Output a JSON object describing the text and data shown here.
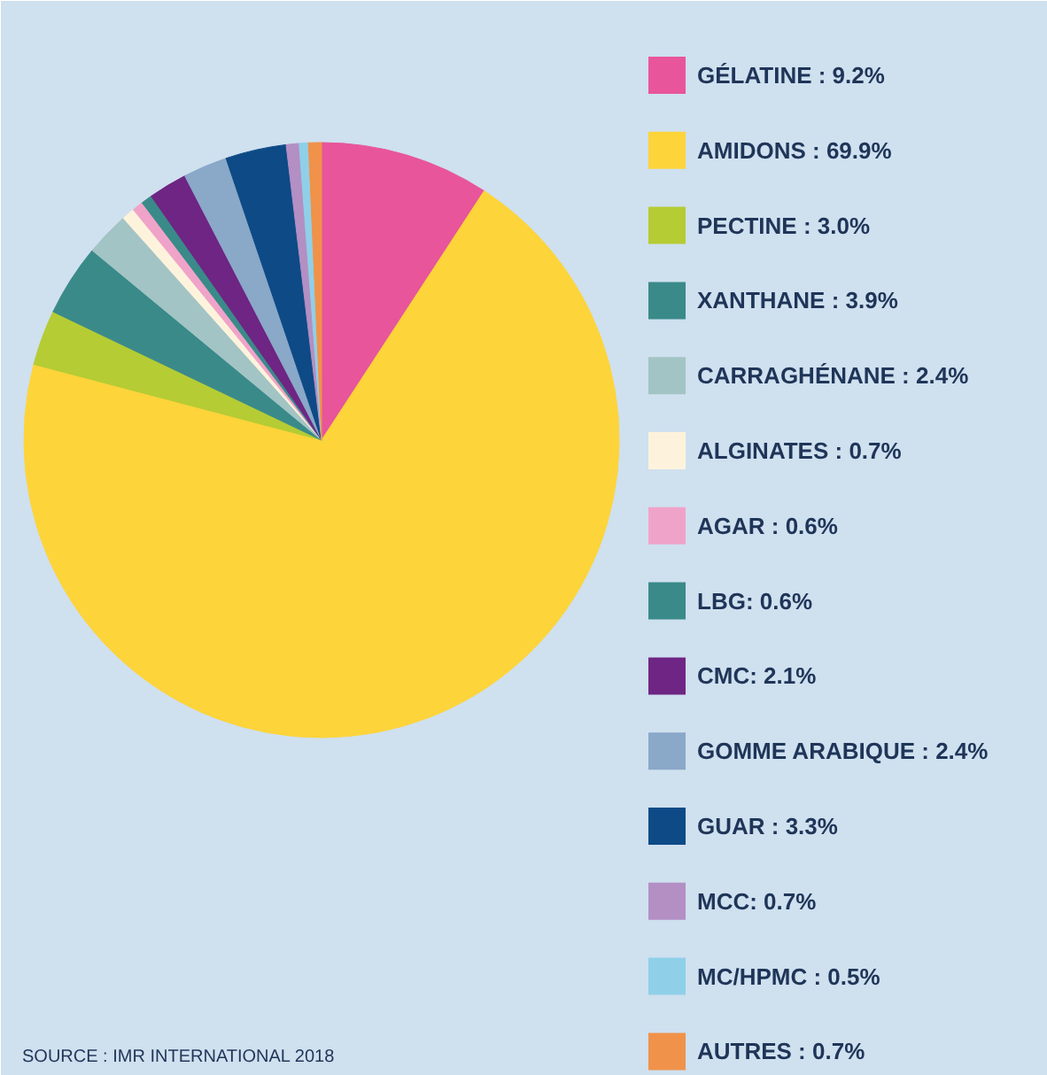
{
  "chart_data": {
    "type": "pie",
    "categories": [
      "GÉLATINE : 9.2%",
      "AMIDONS : 69.9%",
      "PECTINE : 3.0%",
      "XANTHANE : 3.9%",
      "CARRAGHÉNANE : 2.4%",
      "ALGINATES : 0.7%",
      "AGAR : 0.6%",
      "LBG: 0.6%",
      "CMC: 2.1%",
      "GOMME ARABIQUE : 2.4%",
      "GUAR : 3.3%",
      "MCC: 0.7%",
      "MC/HPMC : 0.5%",
      "AUTRES : 0.7%"
    ],
    "values": [
      9.2,
      69.9,
      3.0,
      3.9,
      2.4,
      0.7,
      0.6,
      0.6,
      2.1,
      2.4,
      3.3,
      0.7,
      0.5,
      0.7
    ],
    "colors": [
      "#e8559a",
      "#fdd43a",
      "#b5cc34",
      "#3a8a8a",
      "#a3c4c4",
      "#fdf3dc",
      "#f0a3c8",
      "#3a8a8a",
      "#6e2583",
      "#8aa8c8",
      "#0d4a86",
      "#b38fc4",
      "#8fd0e8",
      "#f0924a"
    ],
    "legend": "right",
    "annotations": [
      "SOURCE : IMR INTERNATIONAL 2018"
    ]
  }
}
